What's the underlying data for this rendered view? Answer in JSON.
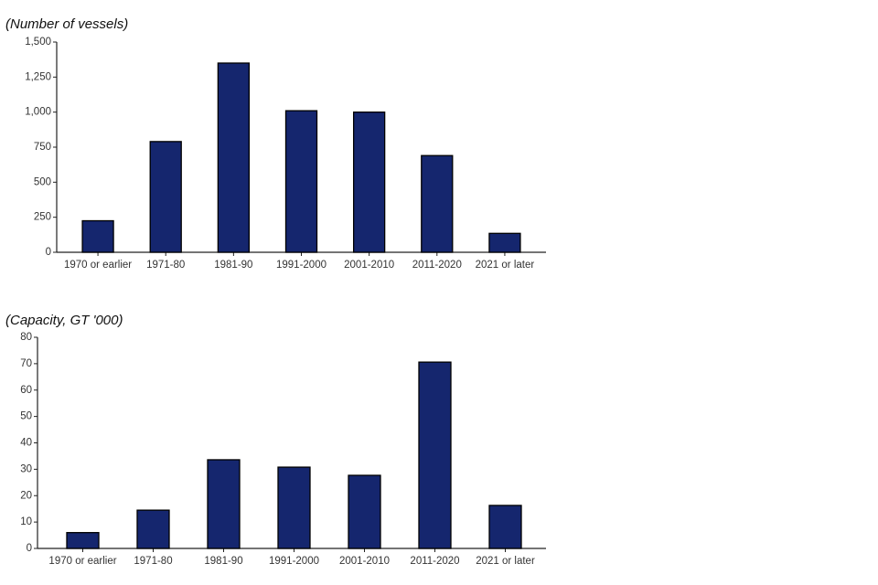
{
  "chart_data": [
    {
      "type": "bar",
      "title": "(Number of vessels)",
      "categories": [
        "1970 or earlier",
        "1971-80",
        "1981-90",
        "1991-2000",
        "2001-2010",
        "2011-2020",
        "2021 or later"
      ],
      "values": [
        225,
        790,
        1350,
        1010,
        1000,
        690,
        135
      ],
      "color": "#15266e",
      "ylim": [
        0,
        1500
      ],
      "yticks": [
        0,
        250,
        500,
        750,
        {
          "value": 1000,
          "label": "1,000"
        },
        {
          "value": 1250,
          "label": "1,250"
        },
        {
          "value": 1500,
          "label": "1,500"
        }
      ],
      "grid": false
    },
    {
      "type": "bar",
      "title": "(Capacity, GT '000)",
      "categories": [
        "1970 or earlier",
        "1971-80",
        "1981-90",
        "1991-2000",
        "2001-2010",
        "2011-2020",
        "2021 or later"
      ],
      "values": [
        6,
        14.5,
        33.6,
        30.8,
        27.7,
        70.6,
        16.3
      ],
      "color": "#15266e",
      "ylim": [
        0,
        80
      ],
      "yticks": [
        0,
        10,
        20,
        30,
        40,
        50,
        60,
        70,
        80
      ],
      "grid": false
    }
  ]
}
